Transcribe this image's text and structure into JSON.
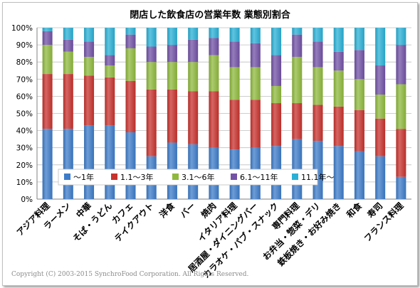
{
  "chart_data": {
    "type": "bar",
    "stacked": true,
    "title": "閉店した飲食店の営業年数 業態別割合",
    "xlabel": "",
    "ylabel": "",
    "ylim": [
      0,
      100
    ],
    "yticks": [
      "0%",
      "10%",
      "20%",
      "30%",
      "40%",
      "50%",
      "60%",
      "70%",
      "80%",
      "90%",
      "100%"
    ],
    "grid": true,
    "legend_position": "inside-bottom",
    "categories": [
      "アジア料理",
      "ラーメン",
      "中華",
      "そば・うどん",
      "カフェ",
      "テイクアウト",
      "洋食",
      "バー",
      "焼肉",
      "イタリア料理",
      "居酒屋・ダイニングバー",
      "カラオケ・パブ・スナック",
      "専門料理",
      "お弁当・惣菜・デリ",
      "鉄板焼き・お好み焼き",
      "和食",
      "寿司",
      "フランス料理"
    ],
    "series": [
      {
        "name": "～1年",
        "color": "#3d7cc9",
        "values": [
          41,
          41,
          43,
          43,
          39,
          25,
          33,
          32,
          30,
          29,
          30,
          31,
          35,
          34,
          31,
          28,
          25,
          13
        ]
      },
      {
        "name": "1.1～3年",
        "color": "#c8322d",
        "values": [
          32,
          32,
          29,
          28,
          30,
          39,
          31,
          31,
          33,
          29,
          28,
          25,
          21,
          21,
          23,
          24,
          22,
          28
        ]
      },
      {
        "name": "3.1～6年",
        "color": "#8fb93d",
        "values": [
          17,
          13,
          11,
          7,
          19,
          16,
          16,
          17,
          21,
          19,
          19,
          10,
          27,
          22,
          21,
          18,
          14,
          26
        ]
      },
      {
        "name": "6.1～11年",
        "color": "#7252a6",
        "values": [
          8,
          7,
          9,
          6,
          8,
          9,
          10,
          13,
          10,
          15,
          14,
          18,
          13,
          15,
          11,
          17,
          17,
          23
        ]
      },
      {
        "name": "11.1年～",
        "color": "#2ab0d6",
        "values": [
          2,
          7,
          8,
          16,
          4,
          11,
          10,
          7,
          6,
          8,
          9,
          16,
          4,
          8,
          14,
          13,
          22,
          10
        ]
      }
    ]
  },
  "copyright": "Copyright (C) 2003-2015 SynchroFood Corporation. All Rights Reserved."
}
